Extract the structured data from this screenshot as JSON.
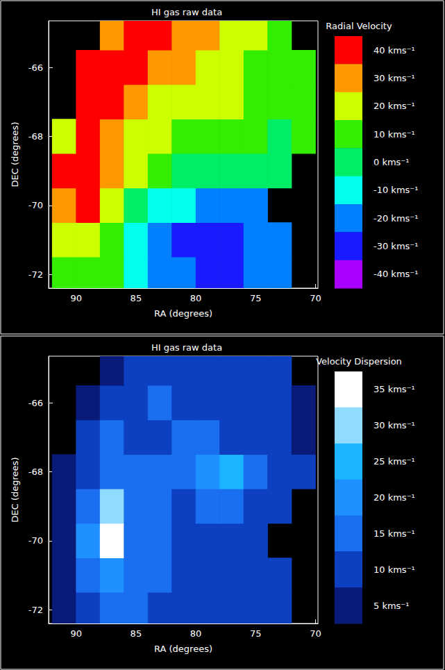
{
  "chart_data": [
    {
      "type": "heatmap",
      "title": "HI gas raw data",
      "x_label": "RA (degrees)",
      "y_label": "DEC (degrees)",
      "xlim": [
        92.3,
        69.8
      ],
      "xticks": [
        90,
        85,
        80,
        75,
        70
      ],
      "ylim": [
        -72.4,
        -64.65
      ],
      "yticks": [
        -72,
        -70,
        -68,
        -66
      ],
      "x": [
        91,
        89,
        87,
        85,
        83,
        81,
        79,
        77,
        75,
        73,
        71
      ],
      "y": [
        -72,
        -71,
        -70,
        -69,
        -68,
        -67,
        -66,
        -65
      ],
      "cells": [
        [
          10,
          10,
          5,
          -10,
          -20,
          -25,
          -30,
          -30,
          -25,
          -20,
          null
        ],
        [
          20,
          20,
          10,
          -10,
          -25,
          -30,
          -30,
          -30,
          -25,
          -20,
          null
        ],
        [
          30,
          35,
          20,
          0,
          -10,
          -15,
          -20,
          -25,
          -20,
          null,
          null
        ],
        [
          40,
          40,
          30,
          15,
          5,
          0,
          -5,
          -5,
          0,
          0,
          null
        ],
        [
          20,
          35,
          30,
          20,
          15,
          10,
          5,
          5,
          5,
          0,
          5
        ],
        [
          null,
          40,
          40,
          30,
          20,
          20,
          15,
          15,
          10,
          5,
          5
        ],
        [
          null,
          40,
          40,
          35,
          30,
          25,
          20,
          15,
          10,
          10,
          5
        ],
        [
          null,
          null,
          30,
          35,
          35,
          30,
          25,
          20,
          15,
          10,
          null
        ]
      ],
      "colorbar": {
        "title": "Radial Velocity",
        "levels": [
          40,
          30,
          20,
          10,
          0,
          -10,
          -20,
          -30,
          -40
        ],
        "labels": [
          "40 kms⁻¹",
          "30 kms⁻¹",
          "20 kms⁻¹",
          "10 kms⁻¹",
          "0 kms⁻¹",
          "-10 kms⁻¹",
          "-20 kms⁻¹",
          "-30 kms⁻¹",
          "-40 kms⁻¹"
        ],
        "colors": [
          "#ff0000",
          "#ff9900",
          "#ccff00",
          "#33ee00",
          "#00ee66",
          "#00ffee",
          "#0080ff",
          "#1a1aff",
          "#aa00ff"
        ]
      }
    },
    {
      "type": "heatmap",
      "title": "HI gas raw data",
      "x_label": "RA (degrees)",
      "y_label": "DEC (degrees)",
      "xlim": [
        92.3,
        69.8
      ],
      "xticks": [
        90,
        85,
        80,
        75,
        70
      ],
      "ylim": [
        -72.4,
        -64.65
      ],
      "yticks": [
        -72,
        -70,
        -68,
        -66
      ],
      "x": [
        91,
        89,
        87,
        85,
        83,
        81,
        79,
        77,
        75,
        73,
        71
      ],
      "y": [
        -72,
        -71,
        -70,
        -69,
        -68,
        -67,
        -66,
        -65
      ],
      "cells": [
        [
          5,
          10,
          15,
          15,
          10,
          10,
          10,
          10,
          10,
          10,
          null
        ],
        [
          5,
          15,
          20,
          15,
          15,
          10,
          10,
          10,
          10,
          10,
          null
        ],
        [
          5,
          20,
          35,
          15,
          15,
          10,
          10,
          10,
          10,
          null,
          null
        ],
        [
          5,
          15,
          30,
          15,
          15,
          10,
          15,
          15,
          10,
          10,
          null
        ],
        [
          5,
          10,
          15,
          15,
          15,
          15,
          20,
          25,
          15,
          10,
          10
        ],
        [
          null,
          10,
          15,
          10,
          10,
          15,
          15,
          10,
          10,
          10,
          5
        ],
        [
          null,
          5,
          10,
          10,
          15,
          10,
          10,
          10,
          10,
          10,
          5
        ],
        [
          null,
          null,
          5,
          10,
          10,
          10,
          10,
          10,
          10,
          10,
          null
        ]
      ],
      "colorbar": {
        "title": "Velocity Dispersion",
        "levels": [
          35,
          30,
          25,
          20,
          15,
          10,
          5
        ],
        "labels": [
          "35 kms⁻¹",
          "30 kms⁻¹",
          "25 kms⁻¹",
          "20 kms⁻¹",
          "15 kms⁻¹",
          "10 kms⁻¹",
          "5 kms⁻¹"
        ],
        "colors": [
          "#ffffff",
          "#8fdcff",
          "#1ab4ff",
          "#1e90ff",
          "#1a6ef0",
          "#0d40c0",
          "#0a1a78"
        ]
      }
    }
  ]
}
